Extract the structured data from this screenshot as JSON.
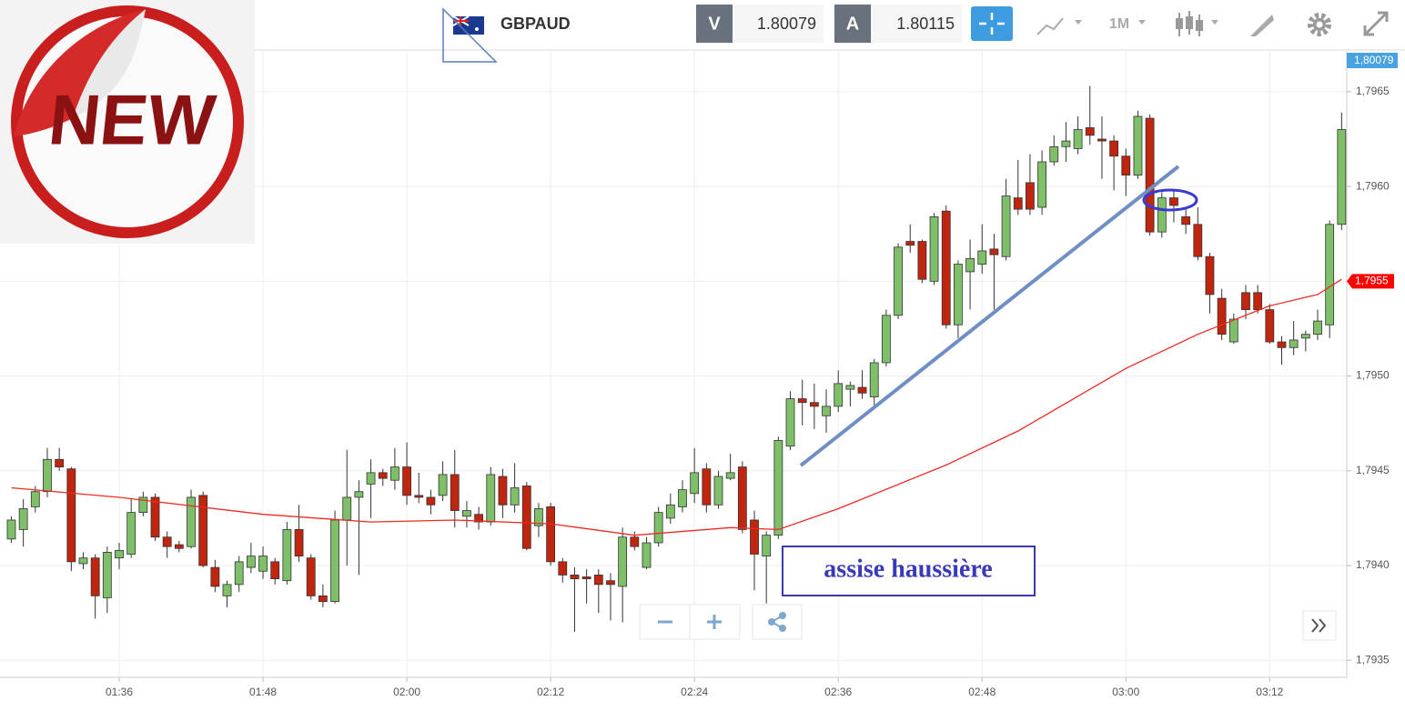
{
  "header": {
    "symbol": "GBPAUD",
    "bid_label": "V",
    "bid": "1.80079",
    "ask_label": "A",
    "ask": "1.80115",
    "timeframe": "1M"
  },
  "sticker": "NEW",
  "chart_data": {
    "type": "candlestick",
    "up_color": "#7fbf6a",
    "down_color": "#c0250f",
    "x": [
      "01:27",
      "01:28",
      "01:29",
      "01:30",
      "01:31",
      "01:32",
      "01:33",
      "01:34",
      "01:35",
      "01:36",
      "01:37",
      "01:38",
      "01:39",
      "01:40",
      "01:41",
      "01:42",
      "01:43",
      "01:44",
      "01:45",
      "01:46",
      "01:47",
      "01:48",
      "01:49",
      "01:50",
      "01:51",
      "01:52",
      "01:53",
      "01:54",
      "01:55",
      "01:56",
      "01:57",
      "01:58",
      "01:59",
      "02:00",
      "02:01",
      "02:02",
      "02:03",
      "02:04",
      "02:05",
      "02:06",
      "02:07",
      "02:08",
      "02:09",
      "02:10",
      "02:11",
      "02:12",
      "02:13",
      "02:14",
      "02:15",
      "02:16",
      "02:17",
      "02:18",
      "02:19",
      "02:20",
      "02:21",
      "02:22",
      "02:23",
      "02:24",
      "02:25",
      "02:26",
      "02:27",
      "02:28",
      "02:29",
      "02:30",
      "02:31",
      "02:32",
      "02:33",
      "02:34",
      "02:35",
      "02:36",
      "02:37",
      "02:38",
      "02:39",
      "02:40",
      "02:41",
      "02:42",
      "02:43",
      "02:44",
      "02:45",
      "02:46",
      "02:47",
      "02:48",
      "02:49",
      "02:50",
      "02:51",
      "02:52",
      "02:53",
      "02:54",
      "02:55",
      "02:56",
      "02:57",
      "02:58",
      "02:59",
      "03:00",
      "03:01",
      "03:02",
      "03:03",
      "03:04",
      "03:05",
      "03:06",
      "03:07",
      "03:08",
      "03:09",
      "03:10",
      "03:11",
      "03:12",
      "03:13",
      "03:14",
      "03:15",
      "03:16",
      "03:17",
      "03:18"
    ],
    "open": [
      1.79414,
      1.79419,
      1.79431,
      1.79439,
      1.79456,
      1.79451,
      1.79401,
      1.79404,
      1.79383,
      1.79404,
      1.79406,
      1.79428,
      1.79436,
      1.79415,
      1.79411,
      1.7941,
      1.79437,
      1.79399,
      1.79384,
      1.7939,
      1.79399,
      1.79397,
      1.79402,
      1.79392,
      1.79419,
      1.79404,
      1.79384,
      1.79381,
      1.79424,
      1.79436,
      1.79443,
      1.79449,
      1.79445,
      1.79452,
      1.79437,
      1.79436,
      1.79437,
      1.79448,
      1.79426,
      1.79427,
      1.79423,
      1.79447,
      1.79432,
      1.79442,
      1.79421,
      1.79431,
      1.79402,
      1.79395,
      1.79394,
      1.79395,
      1.79392,
      1.79389,
      1.79415,
      1.79399,
      1.79412,
      1.79425,
      1.79431,
      1.79438,
      1.79451,
      1.79432,
      1.79446,
      1.79452,
      1.79424,
      1.79405,
      1.79416,
      1.79463,
      1.79488,
      1.79486,
      1.79479,
      1.79484,
      1.79493,
      1.79494,
      1.79489,
      1.79507,
      1.79532,
      1.79571,
      1.79571,
      1.7955,
      1.79587,
      1.79527,
      1.79555,
      1.79559,
      1.79567,
      1.79563,
      1.79594,
      1.79602,
      1.79589,
      1.79613,
      1.79621,
      1.7962,
      1.79631,
      1.79625,
      1.79624,
      1.79616,
      1.79606,
      1.79636,
      1.79576,
      1.79594,
      1.79584,
      1.7958,
      1.79563,
      1.79541,
      1.79518,
      1.79544,
      1.79544,
      1.79535,
      1.79518,
      1.79515,
      1.7952,
      1.79522,
      1.79527,
      1.7958
    ],
    "high": [
      1.79426,
      1.79435,
      1.79442,
      1.79462,
      1.79462,
      1.79452,
      1.79407,
      1.79406,
      1.7941,
      1.79412,
      1.79435,
      1.79439,
      1.79438,
      1.79418,
      1.79413,
      1.7944,
      1.79439,
      1.79403,
      1.79392,
      1.79405,
      1.79412,
      1.7941,
      1.79404,
      1.79423,
      1.79432,
      1.79406,
      1.7939,
      1.79429,
      1.79461,
      1.79445,
      1.79456,
      1.79451,
      1.79462,
      1.79465,
      1.79449,
      1.7944,
      1.79455,
      1.79461,
      1.79434,
      1.79431,
      1.79452,
      1.79451,
      1.79454,
      1.79444,
      1.79433,
      1.79433,
      1.79404,
      1.79399,
      1.79398,
      1.79398,
      1.79396,
      1.7942,
      1.79418,
      1.79415,
      1.79431,
      1.79438,
      1.79445,
      1.79462,
      1.79454,
      1.7945,
      1.79459,
      1.79455,
      1.79429,
      1.79418,
      1.79468,
      1.79492,
      1.79498,
      1.79496,
      1.79493,
      1.79503,
      1.79497,
      1.79503,
      1.79509,
      1.79535,
      1.7957,
      1.7958,
      1.79572,
      1.79586,
      1.7959,
      1.79561,
      1.79572,
      1.7958,
      1.79575,
      1.79604,
      1.79614,
      1.79617,
      1.79619,
      1.79627,
      1.79634,
      1.79637,
      1.79653,
      1.79637,
      1.79627,
      1.7962,
      1.7964,
      1.79638,
      1.79597,
      1.79598,
      1.79588,
      1.79589,
      1.79565,
      1.79546,
      1.79533,
      1.79548,
      1.79548,
      1.79538,
      1.79521,
      1.79529,
      1.79524,
      1.79535,
      1.79582,
      1.79639
    ],
    "low": [
      1.79412,
      1.7941,
      1.79428,
      1.79436,
      1.7945,
      1.79397,
      1.79398,
      1.79372,
      1.79375,
      1.79398,
      1.79404,
      1.79426,
      1.79413,
      1.79404,
      1.79407,
      1.79409,
      1.79399,
      1.79386,
      1.79378,
      1.79386,
      1.79396,
      1.79393,
      1.7939,
      1.7939,
      1.79402,
      1.79382,
      1.79378,
      1.7938,
      1.794,
      1.79395,
      1.79425,
      1.79442,
      1.7944,
      1.79432,
      1.79433,
      1.79427,
      1.79434,
      1.7942,
      1.7942,
      1.79419,
      1.79421,
      1.79425,
      1.79428,
      1.79408,
      1.79415,
      1.794,
      1.79391,
      1.79365,
      1.7938,
      1.79375,
      1.79371,
      1.7937,
      1.79408,
      1.79398,
      1.7941,
      1.79422,
      1.79428,
      1.79433,
      1.79428,
      1.7943,
      1.79445,
      1.79417,
      1.79387,
      1.7938,
      1.79414,
      1.79461,
      1.79474,
      1.79472,
      1.7947,
      1.79481,
      1.79484,
      1.79488,
      1.79483,
      1.79505,
      1.7953,
      1.79565,
      1.79549,
      1.79548,
      1.79525,
      1.7952,
      1.79535,
      1.79554,
      1.79535,
      1.79561,
      1.79585,
      1.79585,
      1.79585,
      1.79611,
      1.79613,
      1.79617,
      1.79622,
      1.79604,
      1.79598,
      1.79595,
      1.79604,
      1.79574,
      1.79573,
      1.79581,
      1.79575,
      1.79561,
      1.79533,
      1.79519,
      1.79517,
      1.7953,
      1.79533,
      1.79517,
      1.79506,
      1.79511,
      1.79513,
      1.79519,
      1.7952,
      1.79577
    ],
    "close": [
      1.79424,
      1.7943,
      1.79439,
      1.79456,
      1.79452,
      1.79402,
      1.79404,
      1.79384,
      1.79407,
      1.79408,
      1.79428,
      1.79436,
      1.79415,
      1.7941,
      1.79409,
      1.79436,
      1.794,
      1.79389,
      1.7939,
      1.79402,
      1.79405,
      1.79405,
      1.79393,
      1.79419,
      1.79405,
      1.79384,
      1.79381,
      1.79424,
      1.79436,
      1.79439,
      1.79449,
      1.79446,
      1.79452,
      1.79437,
      1.79436,
      1.79432,
      1.79448,
      1.79429,
      1.79429,
      1.79423,
      1.79448,
      1.79432,
      1.79441,
      1.79409,
      1.7943,
      1.79402,
      1.79395,
      1.79393,
      1.79393,
      1.7939,
      1.7939,
      1.79415,
      1.7941,
      1.79412,
      1.79428,
      1.79432,
      1.7944,
      1.79449,
      1.79432,
      1.79447,
      1.79449,
      1.79419,
      1.79406,
      1.79416,
      1.79466,
      1.79488,
      1.79486,
      1.79484,
      1.79484,
      1.79496,
      1.79495,
      1.79491,
      1.79507,
      1.79532,
      1.79568,
      1.79569,
      1.79551,
      1.79584,
      1.79527,
      1.79559,
      1.79562,
      1.79566,
      1.79564,
      1.79595,
      1.79588,
      1.79588,
      1.79613,
      1.79621,
      1.79624,
      1.7963,
      1.79627,
      1.79624,
      1.79616,
      1.79606,
      1.79637,
      1.79576,
      1.79594,
      1.7959,
      1.7958,
      1.79563,
      1.79543,
      1.79522,
      1.7953,
      1.79535,
      1.79535,
      1.79518,
      1.79515,
      1.79519,
      1.79522,
      1.79529,
      1.7958,
      1.7963
    ],
    "moving_average": {
      "color": "#ee2a24",
      "x": [
        "01:27",
        "01:36",
        "01:48",
        "01:57",
        "02:04",
        "02:12",
        "02:19",
        "02:27",
        "02:31",
        "02:36",
        "02:45",
        "02:51",
        "03:00",
        "03:06",
        "03:12",
        "03:16",
        "03:18"
      ],
      "values": [
        1.79441,
        1.79436,
        1.79427,
        1.79423,
        1.79424,
        1.79422,
        1.79416,
        1.7942,
        1.79419,
        1.7943,
        1.79453,
        1.79471,
        1.79504,
        1.79522,
        1.79537,
        1.79543,
        1.79551
      ]
    },
    "ylim": [
      1.79341,
      1.79672
    ],
    "yticks": [
      {
        "value": 1.7935,
        "label": "1,7935"
      },
      {
        "value": 1.794,
        "label": "1,7940"
      },
      {
        "value": 1.7945,
        "label": "1,7945"
      },
      {
        "value": 1.795,
        "label": "1,7950"
      },
      {
        "value": 1.7955,
        "label": "1,7955"
      },
      {
        "value": 1.796,
        "label": "1,7960"
      },
      {
        "value": 1.7965,
        "label": "1,7965"
      }
    ],
    "xticks": [
      "01:36",
      "01:48",
      "02:00",
      "02:12",
      "02:24",
      "02:36",
      "02:48",
      "03:00",
      "03:12"
    ],
    "grid": true,
    "price_marker": {
      "value": 1.7955,
      "label": "1,7955",
      "color": "#ff0000"
    },
    "bid_marker": {
      "label": "1,80079",
      "color": "#4aa3df"
    },
    "annotation": "assise haussière"
  }
}
